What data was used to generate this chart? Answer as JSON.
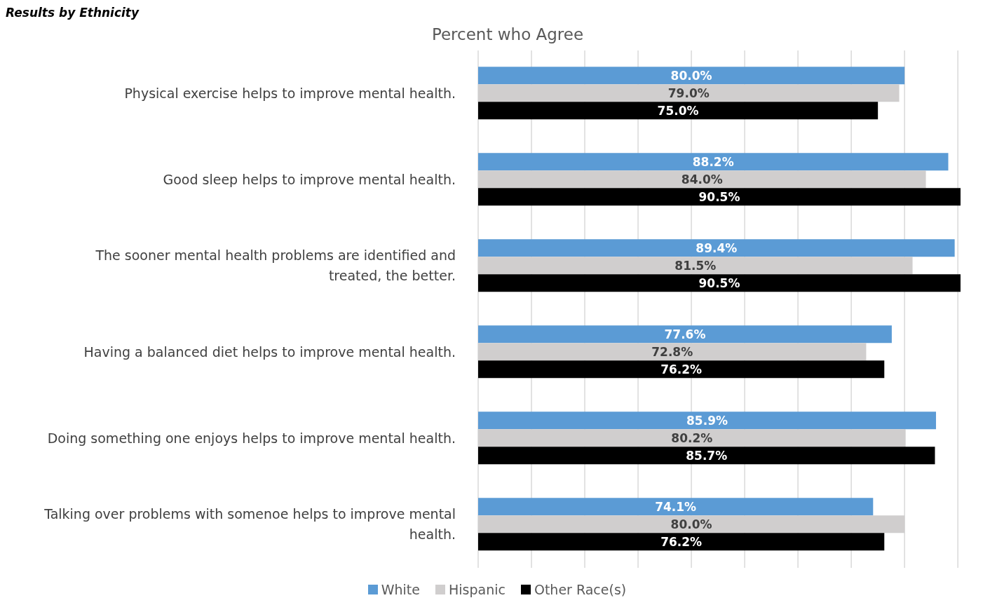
{
  "chart_data": {
    "type": "bar",
    "orientation": "horizontal",
    "title": "Percent who Agree",
    "annotations": [
      "Results by Ethnicity"
    ],
    "categories": [
      "Physical exercise helps to improve mental health.",
      "Good sleep helps to improve mental health.",
      "The sooner mental health problems are identified and treated, the better.",
      "Having a balanced diet helps to improve mental health.",
      "Doing something one enjoys helps to improve mental health.",
      "Talking over problems with somenoe helps to improve mental health."
    ],
    "series": [
      {
        "name": "White",
        "color": "#5b9bd5",
        "values": [
          80.0,
          88.2,
          89.4,
          77.6,
          85.9,
          74.1
        ],
        "value_labels": [
          "80.0%",
          "88.2%",
          "89.4%",
          "77.6%",
          "85.9%",
          "74.1%"
        ]
      },
      {
        "name": "Hispanic",
        "color": "#d0cece",
        "values": [
          79.0,
          84.0,
          81.5,
          72.8,
          80.2,
          80.0
        ],
        "value_labels": [
          "79.0%",
          "84.0%",
          "81.5%",
          "72.8%",
          "80.2%",
          "80.0%"
        ]
      },
      {
        "name": "Other Race(s)",
        "color": "#000000",
        "values": [
          75.0,
          90.5,
          90.5,
          76.2,
          85.7,
          76.2
        ],
        "value_labels": [
          "75.0%",
          "90.5%",
          "90.5%",
          "76.2%",
          "85.7%",
          "76.2%"
        ]
      }
    ],
    "xlim": [
      0,
      90.5
    ],
    "xticks": [
      {
        "value": 0,
        "label": null
      },
      {
        "value": 10,
        "label": null
      },
      {
        "value": 20,
        "label": null
      },
      {
        "value": 30,
        "label": null
      },
      {
        "value": 40,
        "label": null
      },
      {
        "value": 50,
        "label": null
      },
      {
        "value": 60,
        "label": null
      },
      {
        "value": 70,
        "label": null
      },
      {
        "value": 80,
        "label": null
      },
      {
        "value": 90,
        "label": null
      }
    ],
    "tick_labels": "y",
    "grid": "x",
    "legend": "bottom"
  }
}
